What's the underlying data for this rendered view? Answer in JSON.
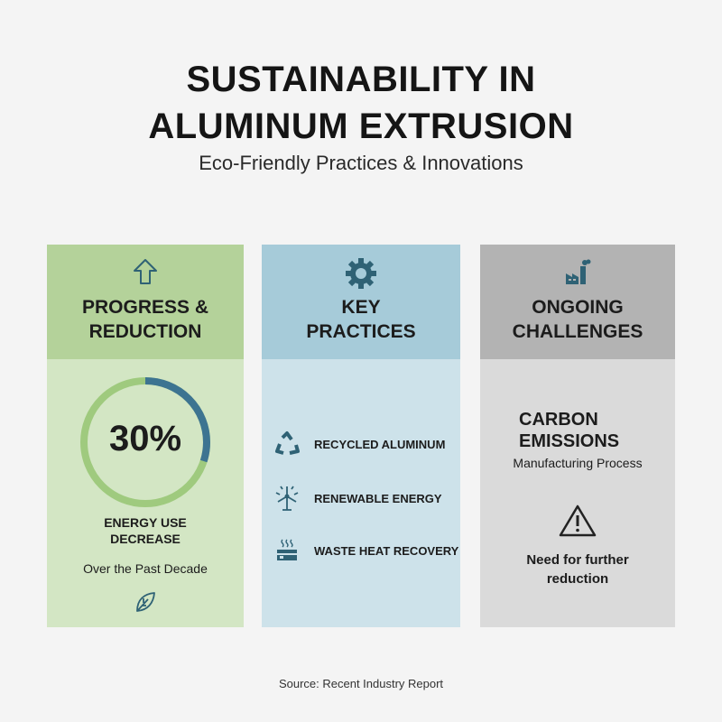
{
  "title_line1": "SUSTAINABILITY IN",
  "title_line2": "ALUMINUM EXTRUSION",
  "subtitle": "Eco-Friendly Practices & Innovations",
  "panels": {
    "progress": {
      "heading_line1": "PROGRESS &",
      "heading_line2": "REDUCTION",
      "icon": "arrow-up-icon",
      "value": "30%",
      "percent": 30,
      "label_line1": "ENERGY USE",
      "label_line2": "DECREASE",
      "sub": "Over the Past Decade",
      "footer_icon": "leaf-icon",
      "ring_color": "#3d7491",
      "track_color": "#8fbf6a"
    },
    "practices": {
      "heading_line1": "KEY",
      "heading_line2": "PRACTICES",
      "icon": "gear-icon",
      "items": [
        {
          "label": "RECYCLED ALUMINUM",
          "icon": "recycle-icon"
        },
        {
          "label": "RENEWABLE ENERGY",
          "icon": "wind-turbine-icon"
        },
        {
          "label": "WASTE HEAT RECOVERY",
          "icon": "heat-recovery-icon"
        }
      ]
    },
    "challenges": {
      "heading_line1": "ONGOING",
      "heading_line2": "CHALLENGES",
      "icon": "factory-icon",
      "item_line1": "CARBON",
      "item_line2": "EMISSIONS",
      "item_sub": "Manufacturing Process",
      "warn_icon": "warning-icon",
      "note_line1": "Need for further",
      "note_line2": "reduction"
    }
  },
  "source": "Source: Recent Industry Report",
  "colors": {
    "green": "#b4d29a",
    "blue": "#a6cbd9",
    "gray": "#b3b3b3",
    "icon": "#2f6275"
  }
}
